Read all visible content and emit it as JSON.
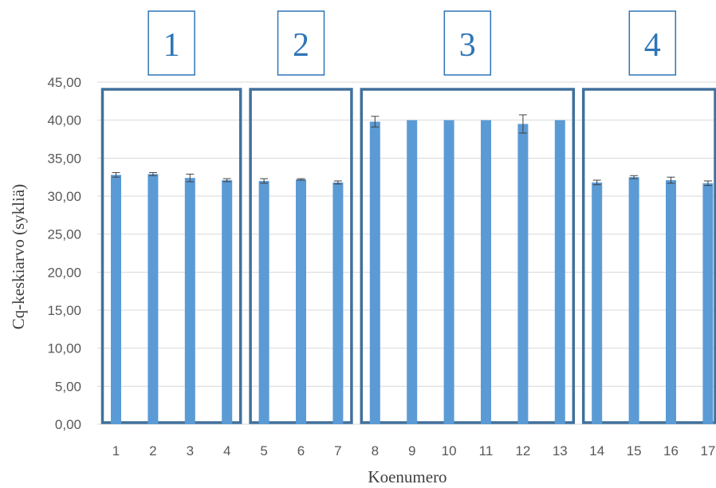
{
  "chart_data": {
    "type": "bar",
    "xlabel": "Koenumero",
    "ylabel": "Cq-keskiarvo (sykliä)",
    "ylim": [
      0,
      45
    ],
    "ytick_step": 5,
    "yticks": [
      "0,00",
      "5,00",
      "10,00",
      "15,00",
      "20,00",
      "25,00",
      "30,00",
      "35,00",
      "40,00",
      "45,00"
    ],
    "grid": true,
    "categories": [
      "1",
      "2",
      "3",
      "4",
      "5",
      "6",
      "7",
      "8",
      "9",
      "10",
      "11",
      "12",
      "13",
      "14",
      "15",
      "16",
      "17"
    ],
    "values": [
      32.8,
      32.9,
      32.4,
      32.1,
      32.0,
      32.2,
      31.8,
      39.8,
      40.0,
      40.0,
      40.0,
      39.5,
      40.0,
      31.8,
      32.5,
      32.1,
      31.7
    ],
    "errors": [
      0.3,
      0.2,
      0.5,
      0.2,
      0.3,
      0.1,
      0.2,
      0.7,
      0.0,
      0.0,
      0.0,
      1.2,
      0.0,
      0.3,
      0.2,
      0.4,
      0.3
    ],
    "groups": [
      {
        "label": "1",
        "first": 1,
        "last": 4
      },
      {
        "label": "2",
        "first": 5,
        "last": 7
      },
      {
        "label": "3",
        "first": 8,
        "last": 13
      },
      {
        "label": "4",
        "first": 14,
        "last": 17
      }
    ],
    "colors": {
      "bar": "#5b9bd5",
      "group_box": "#41719c",
      "group_label": "#2e75b6",
      "grid": "#d9d9d9",
      "error_bar": "#404040"
    }
  }
}
